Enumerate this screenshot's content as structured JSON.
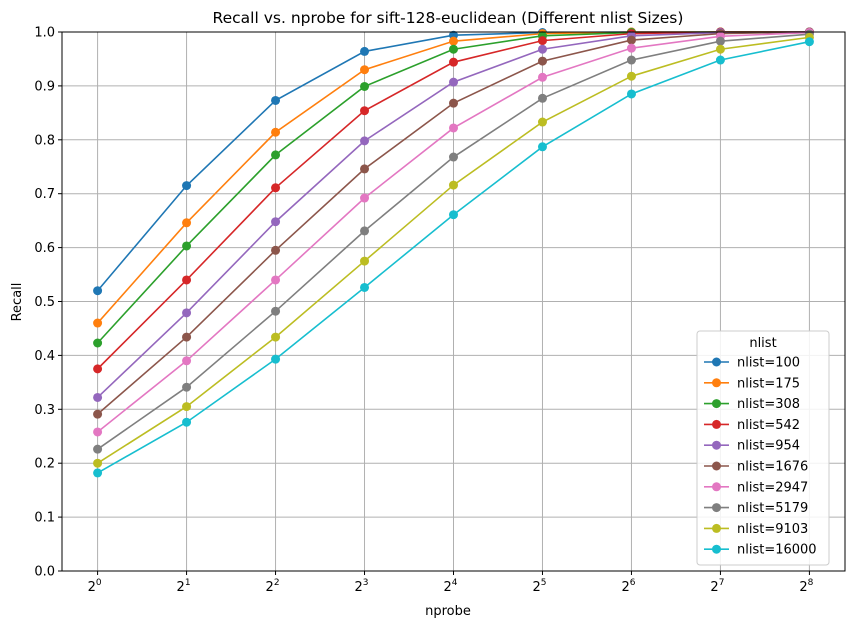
{
  "chart_data": {
    "type": "line",
    "title": "Recall vs. nprobe for sift-128-euclidean (Different nlist Sizes)",
    "xlabel": "nprobe",
    "ylabel": "Recall",
    "x_scale": "log2",
    "x": [
      1,
      2,
      4,
      8,
      16,
      32,
      64,
      128,
      256
    ],
    "x_tick_labels": [
      {
        "base": "2",
        "exp": "0"
      },
      {
        "base": "2",
        "exp": "1"
      },
      {
        "base": "2",
        "exp": "2"
      },
      {
        "base": "2",
        "exp": "3"
      },
      {
        "base": "2",
        "exp": "4"
      },
      {
        "base": "2",
        "exp": "5"
      },
      {
        "base": "2",
        "exp": "6"
      },
      {
        "base": "2",
        "exp": "7"
      },
      {
        "base": "2",
        "exp": "8"
      }
    ],
    "ylim": [
      0,
      1.0
    ],
    "y_ticks": [
      "0.0",
      "0.1",
      "0.2",
      "0.3",
      "0.4",
      "0.5",
      "0.6",
      "0.7",
      "0.8",
      "0.9",
      "1.0"
    ],
    "grid": true,
    "legend": {
      "title": "nlist",
      "position": "lower-right"
    },
    "series": [
      {
        "name": "nlist=100",
        "color": "#1f77b4",
        "values": [
          0.52,
          0.715,
          0.873,
          0.964,
          0.994,
          0.999,
          1.0,
          1.0,
          1.0
        ]
      },
      {
        "name": "nlist=175",
        "color": "#ff7f0e",
        "values": [
          0.46,
          0.646,
          0.814,
          0.93,
          0.983,
          0.997,
          1.0,
          1.0,
          1.0
        ]
      },
      {
        "name": "nlist=308",
        "color": "#2ca02c",
        "values": [
          0.423,
          0.603,
          0.772,
          0.899,
          0.968,
          0.993,
          0.999,
          1.0,
          1.0
        ]
      },
      {
        "name": "nlist=542",
        "color": "#d62728",
        "values": [
          0.375,
          0.54,
          0.711,
          0.854,
          0.944,
          0.984,
          0.997,
          1.0,
          1.0
        ]
      },
      {
        "name": "nlist=954",
        "color": "#9467bd",
        "values": [
          0.322,
          0.479,
          0.648,
          0.798,
          0.907,
          0.968,
          0.993,
          0.999,
          1.0
        ]
      },
      {
        "name": "nlist=1676",
        "color": "#8c564b",
        "values": [
          0.291,
          0.434,
          0.595,
          0.746,
          0.868,
          0.946,
          0.985,
          0.997,
          1.0
        ]
      },
      {
        "name": "nlist=2947",
        "color": "#e377c2",
        "values": [
          0.258,
          0.39,
          0.54,
          0.692,
          0.822,
          0.916,
          0.97,
          0.992,
          0.999
        ]
      },
      {
        "name": "nlist=5179",
        "color": "#7f7f7f",
        "values": [
          0.226,
          0.341,
          0.482,
          0.631,
          0.768,
          0.877,
          0.948,
          0.983,
          0.996
        ]
      },
      {
        "name": "nlist=9103",
        "color": "#bcbd22",
        "values": [
          0.2,
          0.305,
          0.434,
          0.575,
          0.716,
          0.833,
          0.918,
          0.968,
          0.99
        ]
      },
      {
        "name": "nlist=16000",
        "color": "#17becf",
        "values": [
          0.182,
          0.276,
          0.393,
          0.526,
          0.661,
          0.787,
          0.885,
          0.948,
          0.982
        ]
      }
    ]
  }
}
